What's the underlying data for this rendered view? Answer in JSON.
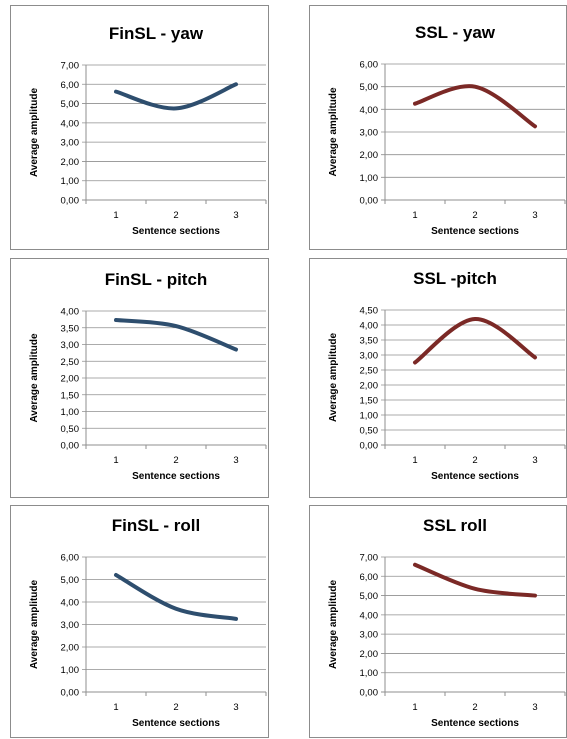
{
  "colors": {
    "finsl": "#2e4e6e",
    "ssl": "#7b2926",
    "grid": "#8f8f8f"
  },
  "chart_data": [
    {
      "type": "line",
      "title": "FinSL - yaw",
      "xlabel": "Sentence sections",
      "ylabel": "Average amplitude",
      "categories": [
        "1",
        "2",
        "3"
      ],
      "values": [
        5.62,
        4.75,
        6.0
      ],
      "ylim": [
        0,
        7
      ],
      "yticks": [
        "0,00",
        "1,00",
        "2,00",
        "3,00",
        "4,00",
        "5,00",
        "6,00",
        "7,00"
      ],
      "color": "finsl",
      "grid": true
    },
    {
      "type": "line",
      "title": "SSL - yaw",
      "xlabel": "Sentence sections",
      "ylabel": "Average amplitude",
      "categories": [
        "1",
        "2",
        "3"
      ],
      "values": [
        4.25,
        5.0,
        3.25
      ],
      "ylim": [
        0,
        6
      ],
      "yticks": [
        "0,00",
        "1,00",
        "2,00",
        "3,00",
        "4,00",
        "5,00",
        "6,00"
      ],
      "color": "ssl",
      "grid": true
    },
    {
      "type": "line",
      "title": "FinSL - pitch",
      "xlabel": "Sentence sections",
      "ylabel": "Average amplitude",
      "categories": [
        "1",
        "2",
        "3"
      ],
      "values": [
        3.73,
        3.55,
        2.85
      ],
      "ylim": [
        0,
        4
      ],
      "yticks": [
        "0,00",
        "0,50",
        "1,00",
        "1,50",
        "2,00",
        "2,50",
        "3,00",
        "3,50",
        "4,00"
      ],
      "color": "finsl",
      "grid": true
    },
    {
      "type": "line",
      "title": "SSL -pitch",
      "xlabel": "Sentence sections",
      "ylabel": "Average amplitude",
      "categories": [
        "1",
        "2",
        "3"
      ],
      "values": [
        2.75,
        4.2,
        2.92
      ],
      "ylim": [
        0,
        4.5
      ],
      "yticks": [
        "0,00",
        "0,50",
        "1,00",
        "1,50",
        "2,00",
        "2,50",
        "3,00",
        "3,50",
        "4,00",
        "4,50"
      ],
      "color": "ssl",
      "grid": true
    },
    {
      "type": "line",
      "title": "FinSL - roll",
      "xlabel": "Sentence sections",
      "ylabel": "Average amplitude",
      "categories": [
        "1",
        "2",
        "3"
      ],
      "values": [
        5.2,
        3.7,
        3.25
      ],
      "ylim": [
        0,
        6
      ],
      "yticks": [
        "0,00",
        "1,00",
        "2,00",
        "3,00",
        "4,00",
        "5,00",
        "6,00"
      ],
      "color": "finsl",
      "grid": true
    },
    {
      "type": "line",
      "title": "SSL roll",
      "xlabel": "Sentence sections",
      "ylabel": "Average amplitude",
      "categories": [
        "1",
        "2",
        "3"
      ],
      "values": [
        6.6,
        5.35,
        5.0
      ],
      "ylim": [
        0,
        7
      ],
      "yticks": [
        "0,00",
        "1,00",
        "2,00",
        "3,00",
        "4,00",
        "5,00",
        "6,00",
        "7,00"
      ],
      "color": "ssl",
      "grid": true
    }
  ]
}
